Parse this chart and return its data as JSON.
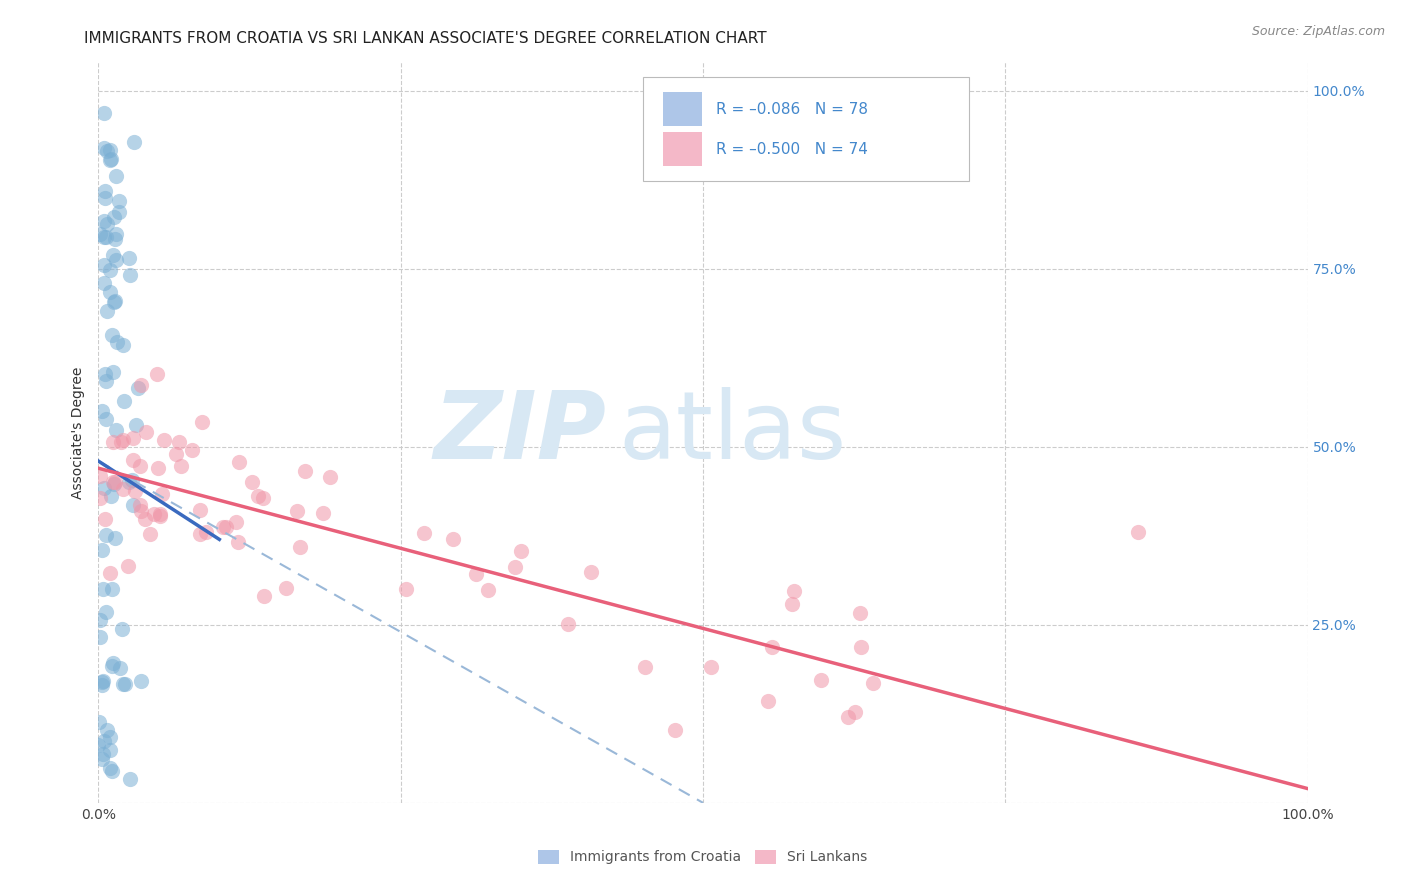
{
  "title": "IMMIGRANTS FROM CROATIA VS SRI LANKAN ASSOCIATE'S DEGREE CORRELATION CHART",
  "source": "Source: ZipAtlas.com",
  "ylabel": "Associate's Degree",
  "legend_label1": "R = –0.086   N = 78",
  "legend_label2": "R = –0.500   N = 74",
  "legend_color1": "#aec6e8",
  "legend_color2": "#f4b8c8",
  "scatter_color1": "#7bafd4",
  "scatter_color2": "#f096a8",
  "trendline_color1": "#3a6abf",
  "trendline_color2": "#e8607a",
  "trendline_dash_color": "#9ab8d8",
  "watermark_zip": "ZIP",
  "watermark_atlas": "atlas",
  "watermark_color": "#d8e8f4",
  "background_color": "#ffffff",
  "grid_color": "#cccccc",
  "right_axis_color": "#4488cc",
  "title_color": "#222222",
  "source_color": "#888888",
  "bottom_legend_color": "#555555"
}
